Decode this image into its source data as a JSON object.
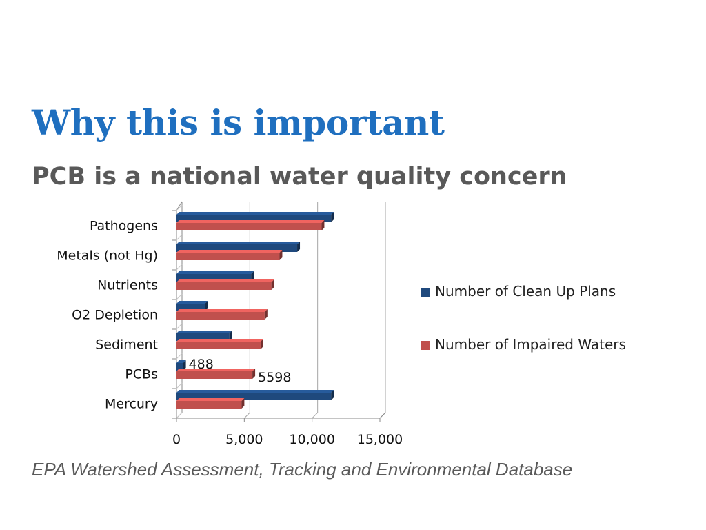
{
  "slide": {
    "title": "Why this is important",
    "subtitle": "PCB is a national water quality concern",
    "source": "EPA Watershed Assessment, Tracking and Environmental Database"
  },
  "chart_data": {
    "type": "bar",
    "orientation": "horizontal",
    "style": "3d",
    "categories": [
      "Pathogens",
      "Metals (not Hg)",
      "Nutrients",
      "O2 Depletion",
      "Sediment",
      "PCBs",
      "Mercury"
    ],
    "series": [
      {
        "name": "Number of Clean Up Plans",
        "color": "#1f497d",
        "values": [
          11400,
          8900,
          5500,
          2100,
          3900,
          488,
          11400
        ]
      },
      {
        "name": "Number of Impaired Waters",
        "color": "#c0504d",
        "values": [
          10700,
          7600,
          7000,
          6500,
          6200,
          5598,
          4800
        ]
      }
    ],
    "data_labels": [
      {
        "series": 0,
        "category": "PCBs",
        "text": "488"
      },
      {
        "series": 1,
        "category": "PCBs",
        "text": "5598"
      }
    ],
    "x_ticks": [
      "0",
      "5,000",
      "10,000",
      "15,000"
    ],
    "xlim": [
      0,
      15000
    ],
    "grid": true,
    "legend_position": "right"
  }
}
